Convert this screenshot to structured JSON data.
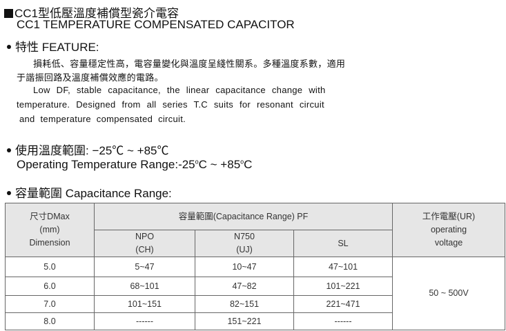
{
  "title_cn": "CC1型低壓溫度補償型瓷介電容",
  "title_en": "CC1 TEMPERATURE COMPENSATED CAPACITOR",
  "feature": {
    "heading_cn": "特性",
    "heading_en": "FEATURE:",
    "cn_line1": "損耗低、容量穩定性高，電容量變化與溫度呈綫性關系。多種溫度系數，適用",
    "cn_line2": "于諧振回路及溫度補償效應的電路。",
    "en_line1": "Low DF, stable capacitance, the linear capacitance change with",
    "en_line2": "temperature. Designed from all series  T.C suits for resonant circuit",
    "en_line3": "and temperature compensated circuit."
  },
  "temperature": {
    "heading_cn": "使用溫度範圍:",
    "range_cn": "−25℃ ~ +85℃",
    "heading_en": "Operating Temperature Range:",
    "low": "-25",
    "sep": "C ~ +85",
    "unit": "C",
    "deg": "o"
  },
  "capacitance": {
    "heading_cn": "容量範圍",
    "heading_en": "Capacitance Range:"
  },
  "table": {
    "dim_header": [
      "尺寸DMax",
      "(mm)",
      "Dimension"
    ],
    "range_header": "容量範圍(Capacitance  Range) PF",
    "columns": [
      [
        "NPO",
        "(CH)"
      ],
      [
        "N750",
        "(UJ)"
      ],
      [
        "SL",
        ""
      ]
    ],
    "voltage_header": [
      "工作電壓(UR)",
      "operating",
      "voltage"
    ],
    "rows": [
      [
        "5.0",
        "5~47",
        "10~47",
        "47~101"
      ],
      [
        "6.0",
        "68~101",
        "47~82",
        "101~221"
      ],
      [
        "7.0",
        "101~151",
        "82~151",
        "221~471"
      ],
      [
        "8.0",
        "------",
        "151~221",
        "------"
      ]
    ],
    "voltage": "50 ~ 500V"
  }
}
